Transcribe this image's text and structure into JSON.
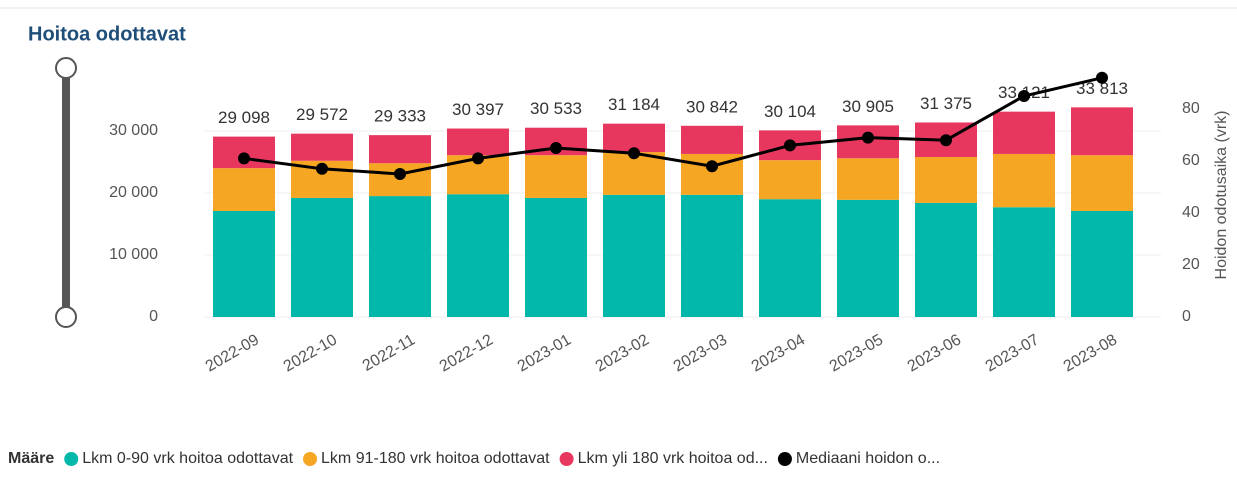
{
  "chart_data": {
    "type": "bar",
    "stacked": true,
    "title": "Hoitoa odottavat",
    "y2_label": "Hoidon odotusaika (vrk)",
    "legend_title": "Määre",
    "categories": [
      "2022-09",
      "2022-10",
      "2022-11",
      "2022-12",
      "2023-01",
      "2023-02",
      "2023-03",
      "2023-04",
      "2023-05",
      "2023-06",
      "2023-07",
      "2023-08"
    ],
    "series": [
      {
        "name": "Lkm 0-90 vrk hoitoa odottavat",
        "color": "#01B8AA",
        "values": [
          17100,
          19200,
          19500,
          19800,
          19200,
          19700,
          19700,
          19000,
          18900,
          18400,
          17700,
          17100
        ]
      },
      {
        "name": "Lkm 91-180 vrk hoitoa odottavat",
        "color": "#F5A623",
        "values": [
          6900,
          6000,
          5300,
          6300,
          6900,
          6900,
          6600,
          6300,
          6700,
          7400,
          8600,
          9000
        ]
      },
      {
        "name": "Lkm yli 180 vrk hoitoa od...",
        "color": "#E8375F",
        "values": [
          5098,
          4372,
          4533,
          4297,
          4433,
          4584,
          4542,
          4804,
          5305,
          5575,
          6821,
          7713
        ]
      },
      {
        "name": "Mediaani hoidon o...",
        "color": "#000000",
        "type": "line",
        "axis": "y2",
        "values": [
          61,
          57,
          55,
          61,
          65,
          63,
          58,
          66,
          69,
          68,
          85,
          92
        ]
      }
    ],
    "totals": {
      "values": [
        29098,
        29572,
        29333,
        30397,
        30533,
        31184,
        30842,
        30104,
        30905,
        31375,
        33121,
        33813
      ],
      "value_labels": [
        "29 098",
        "29 572",
        "29 333",
        "30 397",
        "30 533",
        "31 184",
        "30 842",
        "30 104",
        "30 905",
        "31 375",
        "33 121",
        "33 813"
      ]
    },
    "ylim": [
      0,
      39000
    ],
    "yticks": [
      0,
      {
        "value": 10000,
        "label": "10 000"
      },
      {
        "value": 20000,
        "label": "20 000"
      },
      {
        "value": 30000,
        "label": "30 000"
      }
    ],
    "y2lim": [
      0,
      93
    ],
    "y2ticks": [
      0,
      20,
      40,
      60,
      80
    ],
    "grid": true,
    "legend_position": "bottom"
  }
}
